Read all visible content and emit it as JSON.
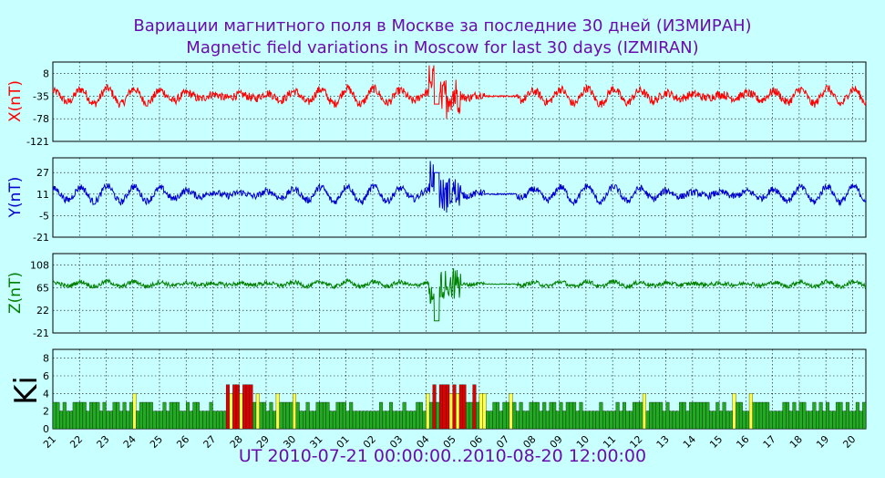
{
  "title_ru": "Вариации магнитного поля в Москве за последние 30 дней (ИЗМИРАН)",
  "title_en": "Magnetic field variations in Moscow for last 30 days (IZMIRAN)",
  "footer": "UT 2010-07-21 00:00:00..2010-08-20 12:00:00",
  "chart_data": [
    {
      "type": "line",
      "ylabel": "X(nT)",
      "color": "#ff0000",
      "yticks": [
        8,
        -35,
        -78,
        -121
      ],
      "ylim": [
        -121,
        30
      ],
      "grid": true,
      "series_note": "daily variation baseline around -35 nT, disturbance near Aug 04-05 (peak ~25, dip ~-100)"
    },
    {
      "type": "line",
      "ylabel": "Y(nT)",
      "color": "#0000cc",
      "yticks": [
        27,
        11,
        -5,
        -21
      ],
      "ylim": [
        -21,
        38
      ],
      "grid": true
    },
    {
      "type": "line",
      "ylabel": "Z(nT)",
      "color": "#008000",
      "yticks": [
        108,
        65,
        22,
        -21
      ],
      "ylim": [
        -21,
        130
      ],
      "grid": true
    },
    {
      "type": "bar",
      "ylabel": "Ki",
      "yticks": [
        8,
        6,
        4,
        2,
        0
      ],
      "ylim": [
        0,
        9
      ],
      "grid": true,
      "colors": {
        "low": "#22aa22",
        "mid": "#ffff44",
        "high": "#dd0000"
      },
      "xticks": [
        "21",
        "22",
        "23",
        "24",
        "25",
        "26",
        "27",
        "28",
        "29",
        "30",
        "31",
        "01",
        "02",
        "03",
        "04",
        "05",
        "06",
        "07",
        "08",
        "09",
        "10",
        "11",
        "12",
        "13",
        "14",
        "15",
        "16",
        "17",
        "18",
        "19",
        "20"
      ]
    }
  ]
}
